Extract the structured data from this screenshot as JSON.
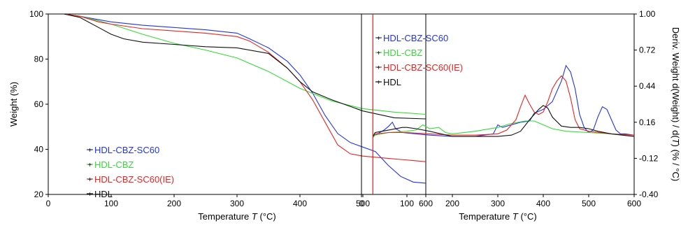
{
  "chart_data": [
    {
      "type": "line",
      "xlabel": "Temperature T (°C)",
      "ylabel": "Weight (%)",
      "xlim": [
        0,
        600
      ],
      "ylim": [
        20,
        100
      ],
      "xticks": [
        0,
        100,
        200,
        300,
        400,
        500,
        600
      ],
      "yticks": [
        20,
        40,
        60,
        80,
        100
      ],
      "xtick_labels": [
        "0",
        "100",
        "200",
        "300",
        "400",
        "500",
        "600"
      ],
      "ytick_labels": [
        "20",
        "40",
        "60",
        "80",
        "100"
      ],
      "grid": false,
      "legend_position": "bottom-left",
      "series": [
        {
          "name": "HDL-CBZ-SC60",
          "color": "#2233ee",
          "x": [
            25,
            50,
            80,
            100,
            150,
            200,
            250,
            300,
            320,
            350,
            380,
            400,
            420,
            440,
            460,
            480,
            500,
            520,
            540,
            560,
            580,
            600
          ],
          "y": [
            100,
            99,
            97.5,
            96.5,
            95,
            94,
            93,
            91.5,
            89,
            85,
            79,
            73,
            65,
            55,
            47,
            43,
            41,
            39,
            33,
            28,
            25.5,
            25
          ]
        },
        {
          "name": "HDL-CBZ",
          "color": "#33dd33",
          "x": [
            25,
            50,
            80,
            100,
            150,
            200,
            250,
            300,
            350,
            400,
            450,
            500,
            550,
            600
          ],
          "y": [
            100,
            99,
            97,
            95.5,
            91,
            87,
            84,
            80.5,
            74.5,
            67,
            61.5,
            58,
            56.5,
            55.5
          ]
        },
        {
          "name": "HDL-CBZ-SC60(IE)",
          "color": "#ee2222",
          "x": [
            25,
            50,
            80,
            100,
            150,
            200,
            250,
            300,
            320,
            350,
            380,
            400,
            420,
            440,
            460,
            480,
            500,
            520,
            540,
            560,
            580,
            600
          ],
          "y": [
            100,
            99,
            96.5,
            95.5,
            93.5,
            92.5,
            91.5,
            90,
            88,
            83,
            76,
            70,
            62,
            52,
            42,
            38,
            37,
            36.5,
            36,
            35.5,
            35,
            34.5
          ]
        },
        {
          "name": "HDL",
          "color": "#111111",
          "x": [
            25,
            50,
            80,
            100,
            120,
            150,
            200,
            250,
            300,
            350,
            380,
            400,
            420,
            450,
            500,
            550,
            600
          ],
          "y": [
            100,
            98.5,
            94,
            91,
            89,
            87.5,
            86.5,
            85.5,
            85,
            82.5,
            76,
            70,
            65.5,
            62,
            57,
            54,
            53.5
          ]
        }
      ]
    },
    {
      "type": "line",
      "xlabel": "Temperature T (°C)",
      "ylabel": "Deriv. Weight d(Weight) / d(T) (% / °C)",
      "xlim": [
        0,
        600
      ],
      "ylim": [
        -0.4,
        1.0
      ],
      "xticks": [
        0,
        100,
        200,
        300,
        400,
        500,
        600
      ],
      "yticks": [
        -0.4,
        -0.12,
        0.16,
        0.44,
        0.72,
        1.0
      ],
      "xtick_labels": [
        "0",
        "100",
        "200",
        "300",
        "400",
        "500",
        "600"
      ],
      "ytick_labels": [
        "-0.40",
        "-0.12",
        "0.16",
        "0.44",
        "0.72",
        "1.00"
      ],
      "y_axis_side": "right",
      "grid": false,
      "legend_position": "top-left",
      "series": [
        {
          "name": "HDL-CBZ-SC60",
          "color": "#2233ee",
          "x": [
            25,
            30,
            50,
            60,
            68,
            75,
            90,
            120,
            150,
            200,
            250,
            290,
            300,
            310,
            330,
            350,
            370,
            380,
            400,
            420,
            440,
            450,
            460,
            470,
            480,
            490,
            500,
            510,
            520,
            530,
            540,
            550,
            560,
            570,
            580,
            600
          ],
          "y": [
            0.05,
            0.06,
            0.1,
            0.13,
            0.16,
            0.11,
            0.08,
            0.07,
            0.06,
            0.05,
            0.05,
            0.07,
            0.14,
            0.12,
            0.14,
            0.16,
            0.17,
            0.23,
            0.26,
            0.32,
            0.48,
            0.6,
            0.55,
            0.42,
            0.22,
            0.12,
            0.08,
            0.1,
            0.2,
            0.28,
            0.26,
            0.18,
            0.1,
            0.07,
            0.07,
            0.06
          ]
        },
        {
          "name": "HDL-CBZ",
          "color": "#33dd33",
          "x": [
            25,
            30,
            60,
            100,
            120,
            135,
            150,
            170,
            185,
            200,
            250,
            300,
            330,
            360,
            380,
            400,
            420,
            450,
            500,
            550,
            600
          ],
          "y": [
            0.04,
            0.06,
            0.08,
            0.09,
            0.1,
            0.14,
            0.11,
            0.12,
            0.08,
            0.07,
            0.09,
            0.12,
            0.15,
            0.17,
            0.17,
            0.14,
            0.11,
            0.09,
            0.08,
            0.07,
            0.05
          ]
        },
        {
          "name": "HDL-CBZ-SC60(IE)",
          "color": "#ee2222",
          "x": [
            25,
            30,
            60,
            100,
            150,
            200,
            250,
            300,
            320,
            340,
            350,
            360,
            370,
            380,
            390,
            400,
            410,
            420,
            430,
            440,
            450,
            460,
            470,
            480,
            500,
            550,
            600
          ],
          "y": [
            0.05,
            0.07,
            0.08,
            0.08,
            0.07,
            0.06,
            0.06,
            0.07,
            0.1,
            0.18,
            0.28,
            0.37,
            0.3,
            0.24,
            0.22,
            0.24,
            0.32,
            0.42,
            0.48,
            0.52,
            0.48,
            0.35,
            0.18,
            0.11,
            0.09,
            0.07,
            0.06
          ]
        },
        {
          "name": "HDL",
          "color": "#111111",
          "x": [
            25,
            30,
            60,
            90,
            100,
            120,
            150,
            200,
            250,
            300,
            330,
            350,
            370,
            390,
            400,
            410,
            420,
            440,
            460,
            480,
            500,
            520,
            550,
            600
          ],
          "y": [
            0.05,
            0.08,
            0.1,
            0.12,
            0.12,
            0.11,
            0.09,
            0.05,
            0.05,
            0.05,
            0.06,
            0.09,
            0.18,
            0.26,
            0.29,
            0.27,
            0.2,
            0.13,
            0.12,
            0.12,
            0.11,
            0.09,
            0.07,
            0.05
          ]
        }
      ]
    }
  ]
}
